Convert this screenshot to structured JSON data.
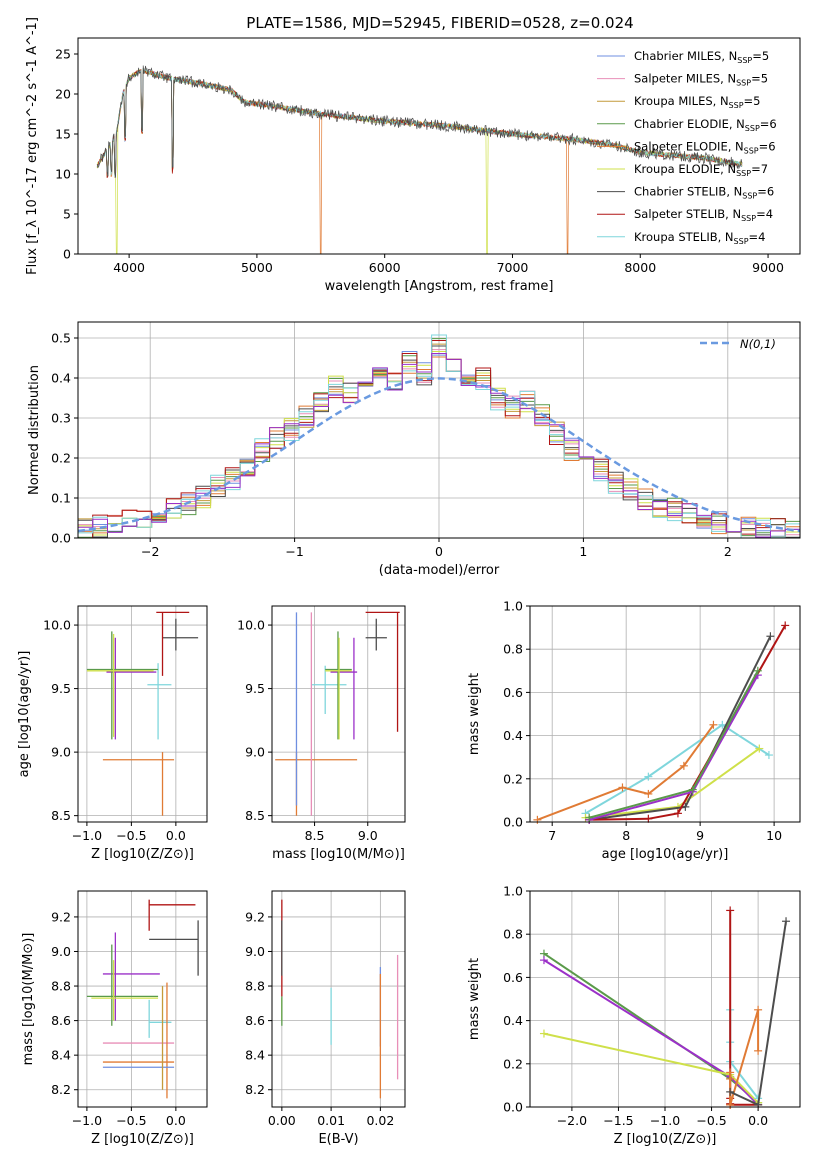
{
  "figure_title": "PLATE=1586, MJD=52945, FIBERID=0528, z=0.024",
  "colors": {
    "Chabrier MILES": "#6f8fe0",
    "Salpeter MILES": "#e88fb8",
    "Kroupa MILES": "#c49a3a",
    "Chabrier ELODIE": "#5a9a4a",
    "Salpeter ELODIE": "#e07b35",
    "Kroupa ELODIE": "#cfe04a",
    "Chabrier STELIB": "#4d4d4d",
    "Salpeter STELIB": "#b01515",
    "Kroupa STELIB": "#7fd6dc",
    "purple": "#9b30c8",
    "gauss": "#6a9ae0"
  },
  "chart_data": [
    {
      "id": "spectrum",
      "type": "line",
      "title": "",
      "xlabel": "wavelength [Angstrom, rest frame]",
      "ylabel": "Flux [f_λ 10^-17 erg cm^-2 s^-1 A^-1]",
      "xlim": [
        3600,
        9250
      ],
      "ylim": [
        0,
        27
      ],
      "xticks": [
        "4000",
        "5000",
        "6000",
        "7000",
        "8000",
        "9000"
      ],
      "yticks": [
        "0",
        "5",
        "10",
        "15",
        "20",
        "25"
      ],
      "grid": false,
      "legend_position": "upper-right",
      "legend": [
        {
          "base": "Chabrier MILES, N",
          "n": "5"
        },
        {
          "base": "Salpeter MILES, N",
          "n": "5"
        },
        {
          "base": "Kroupa MILES, N",
          "n": "5"
        },
        {
          "base": "Chabrier ELODIE, N",
          "n": "6"
        },
        {
          "base": "Salpeter ELODIE, N",
          "n": "6"
        },
        {
          "base": "Kroupa ELODIE, N",
          "n": "7"
        },
        {
          "base": "Chabrier STELIB, N",
          "n": "6"
        },
        {
          "base": "Salpeter STELIB, N",
          "n": "4"
        },
        {
          "base": "Kroupa STELIB, N",
          "n": "4"
        }
      ],
      "legend_sub": "SSP",
      "continuum_x": [
        3750,
        3900,
        3950,
        4000,
        4100,
        4300,
        4500,
        4800,
        4900,
        5200,
        5500,
        6000,
        6500,
        7000,
        7500,
        7800,
        8000,
        8500,
        8800
      ],
      "continuum_y": [
        11,
        15,
        20,
        22,
        23,
        22,
        21.5,
        20.5,
        19,
        18.3,
        17.5,
        16.6,
        16.0,
        15.0,
        14.3,
        13.6,
        12.7,
        12.0,
        11.2
      ],
      "dips": [
        [
          3830,
          9.5
        ],
        [
          3860,
          9.7
        ],
        [
          3890,
          9.5
        ],
        [
          3970,
          14
        ],
        [
          4102,
          15
        ],
        [
          4340,
          10
        ],
        [
          5500,
          0
        ],
        [
          6800,
          0
        ],
        [
          7430,
          0
        ],
        [
          3905,
          0
        ]
      ]
    },
    {
      "id": "residuals",
      "type": "step",
      "title": "",
      "xlabel": "(data-model)/error",
      "ylabel": "Normed distribution",
      "xlim": [
        -2.5,
        2.5
      ],
      "ylim": [
        0,
        0.54
      ],
      "xticks": [
        "−2",
        "−1",
        "0",
        "1",
        "2"
      ],
      "yticks": [
        "0.0",
        "0.1",
        "0.2",
        "0.3",
        "0.4",
        "0.5"
      ],
      "grid": true,
      "legend_label": "N(0,1)",
      "series_profile": [
        0.02,
        0.03,
        0.04,
        0.045,
        0.05,
        0.06,
        0.075,
        0.085,
        0.1,
        0.13,
        0.15,
        0.18,
        0.22,
        0.25,
        0.27,
        0.3,
        0.34,
        0.38,
        0.36,
        0.38,
        0.42,
        0.4,
        0.44,
        0.41,
        0.48,
        0.42,
        0.38,
        0.4,
        0.35,
        0.33,
        0.34,
        0.31,
        0.26,
        0.22,
        0.2,
        0.17,
        0.14,
        0.12,
        0.1,
        0.08,
        0.07,
        0.06,
        0.05,
        0.04,
        0.03,
        0.025,
        0.02,
        0.02,
        0.015
      ]
    },
    {
      "id": "age-Z",
      "type": "errorbar",
      "xlabel": "Z [log10(Z/Z⊙)]",
      "ylabel": "age  [log10(age/yr)]",
      "xlim": [
        -1.1,
        0.35
      ],
      "ylim": [
        8.45,
        10.15
      ],
      "xticks": [
        "−1.0",
        "−0.5",
        "0.0"
      ],
      "yticks": [
        "8.5",
        "9.0",
        "9.5",
        "10.0"
      ],
      "points": [
        {
          "c": "Chabrier STELIB",
          "x": 0.0,
          "xlo": -0.15,
          "xhi": 0.25,
          "y": 9.9,
          "ylo": 9.8,
          "yhi": 10.05
        },
        {
          "c": "Salpeter STELIB",
          "x": -0.15,
          "xlo": -0.22,
          "xhi": 0.15,
          "y": 10.1,
          "ylo": 9.6,
          "yhi": 10.1
        },
        {
          "c": "Kroupa STELIB",
          "x": -0.2,
          "xlo": -0.32,
          "xhi": -0.05,
          "y": 9.53,
          "ylo": 9.1,
          "yhi": 9.7
        },
        {
          "c": "purple",
          "x": -0.68,
          "xlo": -0.78,
          "xhi": -0.22,
          "y": 9.63,
          "ylo": 9.1,
          "yhi": 9.9
        },
        {
          "c": "Chabrier ELODIE",
          "x": -0.72,
          "xlo": -1.0,
          "xhi": -0.2,
          "y": 9.65,
          "ylo": 9.1,
          "yhi": 9.95
        },
        {
          "c": "Kroupa ELODIE",
          "x": -0.7,
          "xlo": -1.0,
          "xhi": -0.25,
          "y": 9.64,
          "ylo": 9.12,
          "yhi": 9.93
        },
        {
          "c": "Salpeter ELODIE",
          "x": -0.15,
          "xlo": -0.82,
          "xhi": -0.02,
          "y": 8.94,
          "ylo": 8.5,
          "yhi": 9.0
        }
      ]
    },
    {
      "id": "age-mass",
      "type": "errorbar",
      "xlabel": "mass [log10(M/M⊙)]",
      "ylabel": "",
      "xlim": [
        8.1,
        9.35
      ],
      "ylim": [
        8.45,
        10.15
      ],
      "xticks": [
        "8.5",
        "9.0"
      ],
      "yticks": [
        "8.5",
        "9.0",
        "9.5",
        "10.0"
      ],
      "points": [
        {
          "c": "Chabrier STELIB",
          "x": 9.08,
          "xlo": 8.98,
          "xhi": 9.18,
          "y": 9.9,
          "ylo": 9.8,
          "yhi": 10.05
        },
        {
          "c": "Salpeter STELIB",
          "x": 9.28,
          "xlo": 8.98,
          "xhi": 9.3,
          "y": 10.1,
          "ylo": 9.16,
          "yhi": 10.1
        },
        {
          "c": "Kroupa STELIB",
          "x": 8.6,
          "xlo": 8.47,
          "xhi": 8.8,
          "y": 9.53,
          "ylo": 9.3,
          "yhi": 9.68
        },
        {
          "c": "purple",
          "x": 8.87,
          "xlo": 8.65,
          "xhi": 8.9,
          "y": 9.63,
          "ylo": 9.1,
          "yhi": 9.9
        },
        {
          "c": "Chabrier ELODIE",
          "x": 8.72,
          "xlo": 8.6,
          "xhi": 8.85,
          "y": 9.65,
          "ylo": 9.1,
          "yhi": 9.95
        },
        {
          "c": "Kroupa ELODIE",
          "x": 8.73,
          "xlo": 8.6,
          "xhi": 8.85,
          "y": 9.64,
          "ylo": 9.1,
          "yhi": 9.9
        },
        {
          "c": "Salpeter ELODIE",
          "x": 8.33,
          "xlo": 8.13,
          "xhi": 8.9,
          "y": 8.94,
          "ylo": 8.5,
          "yhi": 9.0
        },
        {
          "c": "Chabrier MILES",
          "x": 8.33,
          "xlo": 8.33,
          "xhi": 8.33,
          "y": 9.3,
          "ylo": 8.58,
          "yhi": 10.1
        },
        {
          "c": "Salpeter MILES",
          "x": 8.47,
          "xlo": 8.47,
          "xhi": 8.47,
          "y": 9.3,
          "ylo": 8.5,
          "yhi": 10.1
        }
      ]
    },
    {
      "id": "massweight-age",
      "type": "line",
      "xlabel": "age  [log10(age/yr)]",
      "ylabel": "mass weight",
      "xlim": [
        6.7,
        10.35
      ],
      "ylim": [
        0,
        1
      ],
      "xticks": [
        "7",
        "8",
        "9",
        "10"
      ],
      "yticks": [
        "0.0",
        "0.2",
        "0.4",
        "0.6",
        "0.8",
        "1.0"
      ],
      "grid": true,
      "series": [
        {
          "c": "Kroupa STELIB",
          "x": [
            7.45,
            8.3,
            9.3,
            9.93
          ],
          "y": [
            0.04,
            0.21,
            0.45,
            0.31
          ]
        },
        {
          "c": "Kroupa ELODIE",
          "x": [
            7.45,
            8.7,
            9.8
          ],
          "y": [
            0.02,
            0.07,
            0.34
          ]
        },
        {
          "c": "Salpeter ELODIE",
          "x": [
            6.8,
            7.95,
            8.3,
            8.78,
            9.18
          ],
          "y": [
            0.01,
            0.16,
            0.13,
            0.26,
            0.45
          ]
        },
        {
          "c": "Chabrier STELIB",
          "x": [
            7.5,
            8.8,
            9.95
          ],
          "y": [
            0.01,
            0.07,
            0.86
          ]
        },
        {
          "c": "Salpeter STELIB",
          "x": [
            7.5,
            8.3,
            8.7,
            10.15
          ],
          "y": [
            0.01,
            0.015,
            0.04,
            0.91
          ]
        },
        {
          "c": "purple",
          "x": [
            7.5,
            8.9,
            9.78
          ],
          "y": [
            0.01,
            0.14,
            0.68
          ]
        },
        {
          "c": "Chabrier ELODIE",
          "x": [
            7.5,
            8.9,
            9.78
          ],
          "y": [
            0.02,
            0.15,
            0.7
          ]
        }
      ]
    },
    {
      "id": "mass-Z",
      "type": "errorbar",
      "xlabel": "Z [log10(Z/Z⊙)]",
      "ylabel": "mass [log10(M/M⊙)]",
      "xlim": [
        -1.1,
        0.35
      ],
      "ylim": [
        8.1,
        9.35
      ],
      "xticks": [
        "−1.0",
        "−0.5",
        "0.0"
      ],
      "yticks": [
        "8.2",
        "8.4",
        "8.6",
        "8.8",
        "9.0",
        "9.2"
      ],
      "points": [
        {
          "c": "Salpeter STELIB",
          "x": -0.3,
          "xlo": -0.3,
          "xhi": 0.22,
          "y": 9.27,
          "ylo": 9.12,
          "yhi": 9.3
        },
        {
          "c": "Chabrier STELIB",
          "x": 0.25,
          "xlo": -0.3,
          "xhi": 0.25,
          "y": 9.07,
          "ylo": 8.86,
          "yhi": 9.18
        },
        {
          "c": "purple",
          "x": -0.68,
          "xlo": -0.82,
          "xhi": -0.18,
          "y": 8.87,
          "ylo": 8.6,
          "yhi": 9.11
        },
        {
          "c": "Chabrier ELODIE",
          "x": -0.72,
          "xlo": -1.0,
          "xhi": -0.2,
          "y": 8.74,
          "ylo": 8.57,
          "yhi": 9.04
        },
        {
          "c": "Kroupa ELODIE",
          "x": -0.7,
          "xlo": -0.95,
          "xhi": -0.2,
          "y": 8.73,
          "ylo": 8.6,
          "yhi": 8.95
        },
        {
          "c": "Kroupa STELIB",
          "x": -0.3,
          "xlo": -0.3,
          "xhi": -0.05,
          "y": 8.59,
          "ylo": 8.5,
          "yhi": 8.72
        },
        {
          "c": "Salpeter MILES",
          "x": -0.3,
          "xlo": -0.82,
          "xhi": -0.02,
          "y": 8.47,
          "ylo": 8.47,
          "yhi": 8.47
        },
        {
          "c": "Salpeter ELODIE",
          "x": -0.1,
          "xlo": -0.82,
          "xhi": -0.02,
          "y": 8.36,
          "ylo": 8.15,
          "yhi": 8.82
        },
        {
          "c": "Chabrier MILES",
          "x": -0.3,
          "xlo": -0.82,
          "xhi": -0.02,
          "y": 8.33,
          "ylo": 8.33,
          "yhi": 8.33
        },
        {
          "c": "Kroupa MILES",
          "x": -0.15,
          "xlo": -0.15,
          "xhi": -0.15,
          "y": 8.5,
          "ylo": 8.2,
          "yhi": 8.8
        }
      ]
    },
    {
      "id": "mass-EBV",
      "type": "errorbar",
      "xlabel": "E(B-V)",
      "ylabel": "",
      "xlim": [
        -0.002,
        0.025
      ],
      "ylim": [
        8.1,
        9.35
      ],
      "xticks": [
        "0.00",
        "0.01",
        "0.02"
      ],
      "yticks": [
        "8.2",
        "8.4",
        "8.6",
        "8.8",
        "9.0",
        "9.2"
      ],
      "vbars": [
        {
          "c": "Salpeter STELIB",
          "x": 0.0,
          "lo": 8.74,
          "hi": 9.3
        },
        {
          "c": "Chabrier STELIB",
          "x": 0.0,
          "lo": 8.86,
          "hi": 9.18
        },
        {
          "c": "Kroupa ELODIE",
          "x": 0.0,
          "lo": 8.6,
          "hi": 8.73
        },
        {
          "c": "Chabrier ELODIE",
          "x": 0.0,
          "lo": 8.57,
          "hi": 8.74
        },
        {
          "c": "Kroupa STELIB",
          "x": 0.01,
          "lo": 8.46,
          "hi": 8.79
        },
        {
          "c": "Chabrier MILES",
          "x": 0.02,
          "lo": 8.45,
          "hi": 8.91
        },
        {
          "c": "Salpeter ELODIE",
          "x": 0.02,
          "lo": 8.15,
          "hi": 8.87
        },
        {
          "c": "Salpeter MILES",
          "x": 0.0235,
          "lo": 8.26,
          "hi": 8.98
        }
      ]
    },
    {
      "id": "massweight-Z",
      "type": "line",
      "xlabel": "Z [log10(Z/Z⊙)]",
      "ylabel": "mass weight",
      "xlim": [
        -2.45,
        0.45
      ],
      "ylim": [
        0,
        1
      ],
      "xticks": [
        "−2.0",
        "−1.5",
        "−1.0",
        "−0.5",
        "0.0"
      ],
      "yticks": [
        "0.0",
        "0.2",
        "0.4",
        "0.6",
        "0.8",
        "1.0"
      ],
      "grid": true,
      "series": [
        {
          "c": "Chabrier ELODIE",
          "x": [
            -2.3,
            -0.3,
            0.0
          ],
          "y": [
            0.71,
            0.13,
            0.02
          ]
        },
        {
          "c": "purple",
          "x": [
            -2.3,
            -0.3,
            0.0
          ],
          "y": [
            0.68,
            0.14,
            0.01
          ]
        },
        {
          "c": "Kroupa ELODIE",
          "x": [
            -2.3,
            -0.3,
            0.0
          ],
          "y": [
            0.34,
            0.15,
            0.02
          ]
        },
        {
          "c": "Kroupa STELIB",
          "x": [
            -0.3,
            -0.3,
            -0.3,
            0.0
          ],
          "y": [
            0.45,
            0.3,
            0.21,
            0.04
          ]
        },
        {
          "c": "Salpeter STELIB",
          "x": [
            -0.3,
            -0.3,
            -0.3,
            -0.3,
            0.0
          ],
          "y": [
            0.91,
            0.04,
            0.015,
            0.01,
            0.01
          ]
        },
        {
          "c": "Salpeter ELODIE",
          "x": [
            -0.3,
            -0.3,
            -0.3,
            0.0,
            0.0
          ],
          "y": [
            0.16,
            0.13,
            0.01,
            0.45,
            0.26
          ]
        },
        {
          "c": "Chabrier STELIB",
          "x": [
            -0.3,
            0.0,
            0.3
          ],
          "y": [
            0.07,
            0.01,
            0.86
          ]
        }
      ]
    }
  ]
}
